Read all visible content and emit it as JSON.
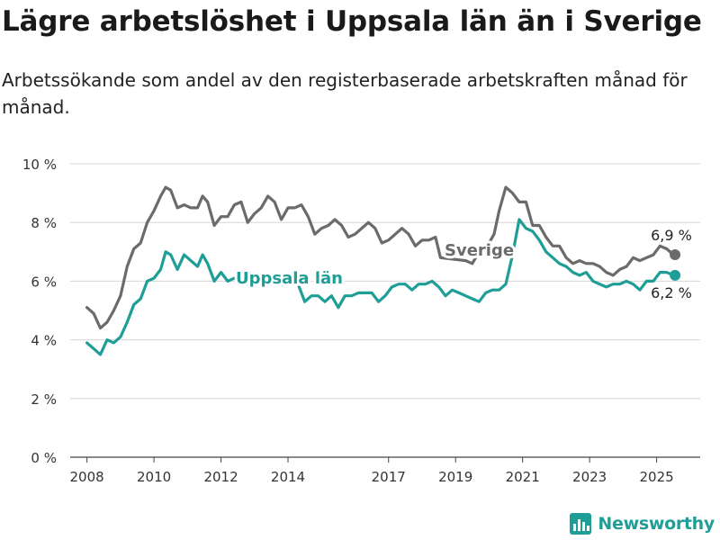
{
  "header": {
    "title": "Lägre arbetslöshet i Uppsala län än i Sverige",
    "subtitle": "Arbetssökande som andel av den registerbaserade arbetskraften månad för månad."
  },
  "brand": {
    "name": "Newsworthy",
    "icon": "bar-chart-logo-icon",
    "color": "#1f9e98"
  },
  "chart_data": {
    "type": "line",
    "x_ticks": [
      "2008",
      "2010",
      "2012",
      "2014",
      "2017",
      "2019",
      "2021",
      "2023",
      "2025"
    ],
    "y_ticks": [
      "0 %",
      "2 %",
      "4 %",
      "6 %",
      "8 %",
      "10 %"
    ],
    "ylim": [
      0,
      10
    ],
    "xlim": [
      2007.5,
      2026.3
    ],
    "grid": true,
    "series": [
      {
        "name": "Sverige",
        "color": "#6b6b6b",
        "last_label": "6,9 %",
        "points": [
          [
            2008.0,
            5.1
          ],
          [
            2008.2,
            4.9
          ],
          [
            2008.4,
            4.4
          ],
          [
            2008.6,
            4.6
          ],
          [
            2008.8,
            5.0
          ],
          [
            2009.0,
            5.5
          ],
          [
            2009.2,
            6.5
          ],
          [
            2009.4,
            7.1
          ],
          [
            2009.6,
            7.3
          ],
          [
            2009.8,
            8.0
          ],
          [
            2010.0,
            8.4
          ],
          [
            2010.2,
            8.9
          ],
          [
            2010.35,
            9.2
          ],
          [
            2010.5,
            9.1
          ],
          [
            2010.7,
            8.5
          ],
          [
            2010.9,
            8.6
          ],
          [
            2011.1,
            8.5
          ],
          [
            2011.3,
            8.5
          ],
          [
            2011.45,
            8.9
          ],
          [
            2011.6,
            8.7
          ],
          [
            2011.8,
            7.9
          ],
          [
            2012.0,
            8.2
          ],
          [
            2012.2,
            8.2
          ],
          [
            2012.4,
            8.6
          ],
          [
            2012.6,
            8.7
          ],
          [
            2012.8,
            8.0
          ],
          [
            2013.0,
            8.3
          ],
          [
            2013.2,
            8.5
          ],
          [
            2013.4,
            8.9
          ],
          [
            2013.6,
            8.7
          ],
          [
            2013.8,
            8.1
          ],
          [
            2014.0,
            8.5
          ],
          [
            2014.2,
            8.5
          ],
          [
            2014.4,
            8.6
          ],
          [
            2014.6,
            8.2
          ],
          [
            2014.8,
            7.6
          ],
          [
            2015.0,
            7.8
          ],
          [
            2015.2,
            7.9
          ],
          [
            2015.4,
            8.1
          ],
          [
            2015.6,
            7.9
          ],
          [
            2015.8,
            7.5
          ],
          [
            2016.0,
            7.6
          ],
          [
            2016.2,
            7.8
          ],
          [
            2016.4,
            8.0
          ],
          [
            2016.6,
            7.8
          ],
          [
            2016.8,
            7.3
          ],
          [
            2017.0,
            7.4
          ],
          [
            2017.2,
            7.6
          ],
          [
            2017.4,
            7.8
          ],
          [
            2017.6,
            7.6
          ],
          [
            2017.8,
            7.2
          ],
          [
            2018.0,
            7.4
          ],
          [
            2018.2,
            7.4
          ],
          [
            2018.4,
            7.5
          ],
          [
            2018.55,
            6.8
          ],
          [
            2019.3,
            6.7
          ],
          [
            2019.5,
            6.6
          ],
          [
            2019.6,
            6.8
          ],
          [
            2019.8,
            7.1
          ],
          [
            2020.0,
            7.3
          ],
          [
            2020.15,
            7.6
          ],
          [
            2020.3,
            8.4
          ],
          [
            2020.5,
            9.2
          ],
          [
            2020.7,
            9.0
          ],
          [
            2020.9,
            8.7
          ],
          [
            2021.1,
            8.7
          ],
          [
            2021.3,
            7.9
          ],
          [
            2021.5,
            7.9
          ],
          [
            2021.7,
            7.5
          ],
          [
            2021.9,
            7.2
          ],
          [
            2022.1,
            7.2
          ],
          [
            2022.3,
            6.8
          ],
          [
            2022.5,
            6.6
          ],
          [
            2022.7,
            6.7
          ],
          [
            2022.9,
            6.6
          ],
          [
            2023.1,
            6.6
          ],
          [
            2023.3,
            6.5
          ],
          [
            2023.5,
            6.3
          ],
          [
            2023.7,
            6.2
          ],
          [
            2023.9,
            6.4
          ],
          [
            2024.1,
            6.5
          ],
          [
            2024.3,
            6.8
          ],
          [
            2024.5,
            6.7
          ],
          [
            2024.7,
            6.8
          ],
          [
            2024.9,
            6.9
          ],
          [
            2025.1,
            7.2
          ],
          [
            2025.3,
            7.1
          ],
          [
            2025.5,
            6.9
          ]
        ]
      },
      {
        "name": "Uppsala län",
        "color": "#1f9e98",
        "last_label": "6,2 %",
        "points": [
          [
            2008.0,
            3.9
          ],
          [
            2008.2,
            3.7
          ],
          [
            2008.4,
            3.5
          ],
          [
            2008.6,
            4.0
          ],
          [
            2008.8,
            3.9
          ],
          [
            2009.0,
            4.1
          ],
          [
            2009.2,
            4.6
          ],
          [
            2009.4,
            5.2
          ],
          [
            2009.6,
            5.4
          ],
          [
            2009.8,
            6.0
          ],
          [
            2010.0,
            6.1
          ],
          [
            2010.2,
            6.4
          ],
          [
            2010.35,
            7.0
          ],
          [
            2010.5,
            6.9
          ],
          [
            2010.7,
            6.4
          ],
          [
            2010.9,
            6.9
          ],
          [
            2011.1,
            6.7
          ],
          [
            2011.3,
            6.5
          ],
          [
            2011.45,
            6.9
          ],
          [
            2011.6,
            6.6
          ],
          [
            2011.8,
            6.0
          ],
          [
            2012.0,
            6.3
          ],
          [
            2012.2,
            6.0
          ],
          [
            2012.4,
            6.1
          ],
          [
            2012.55,
            6.1
          ],
          [
            2012.7,
            5.9
          ],
          [
            2014.3,
            5.9
          ],
          [
            2014.5,
            5.3
          ],
          [
            2014.7,
            5.5
          ],
          [
            2014.9,
            5.5
          ],
          [
            2015.1,
            5.3
          ],
          [
            2015.3,
            5.5
          ],
          [
            2015.5,
            5.1
          ],
          [
            2015.7,
            5.5
          ],
          [
            2015.9,
            5.5
          ],
          [
            2016.1,
            5.6
          ],
          [
            2016.3,
            5.6
          ],
          [
            2016.5,
            5.6
          ],
          [
            2016.7,
            5.3
          ],
          [
            2016.9,
            5.5
          ],
          [
            2017.1,
            5.8
          ],
          [
            2017.3,
            5.9
          ],
          [
            2017.5,
            5.9
          ],
          [
            2017.7,
            5.7
          ],
          [
            2017.9,
            5.9
          ],
          [
            2018.1,
            5.9
          ],
          [
            2018.3,
            6.0
          ],
          [
            2018.5,
            5.8
          ],
          [
            2018.7,
            5.5
          ],
          [
            2018.9,
            5.7
          ],
          [
            2019.1,
            5.6
          ],
          [
            2019.3,
            5.5
          ],
          [
            2019.5,
            5.4
          ],
          [
            2019.7,
            5.3
          ],
          [
            2019.9,
            5.6
          ],
          [
            2020.1,
            5.7
          ],
          [
            2020.3,
            5.7
          ],
          [
            2020.5,
            5.9
          ],
          [
            2020.7,
            6.9
          ],
          [
            2020.9,
            8.1
          ],
          [
            2021.1,
            7.8
          ],
          [
            2021.3,
            7.7
          ],
          [
            2021.5,
            7.4
          ],
          [
            2021.7,
            7.0
          ],
          [
            2021.9,
            6.8
          ],
          [
            2022.1,
            6.6
          ],
          [
            2022.3,
            6.5
          ],
          [
            2022.5,
            6.3
          ],
          [
            2022.7,
            6.2
          ],
          [
            2022.9,
            6.3
          ],
          [
            2023.1,
            6.0
          ],
          [
            2023.3,
            5.9
          ],
          [
            2023.5,
            5.8
          ],
          [
            2023.7,
            5.9
          ],
          [
            2023.9,
            5.9
          ],
          [
            2024.1,
            6.0
          ],
          [
            2024.3,
            5.9
          ],
          [
            2024.5,
            5.7
          ],
          [
            2024.7,
            6.0
          ],
          [
            2024.9,
            6.0
          ],
          [
            2025.1,
            6.3
          ],
          [
            2025.3,
            6.3
          ],
          [
            2025.5,
            6.2
          ]
        ]
      }
    ]
  }
}
